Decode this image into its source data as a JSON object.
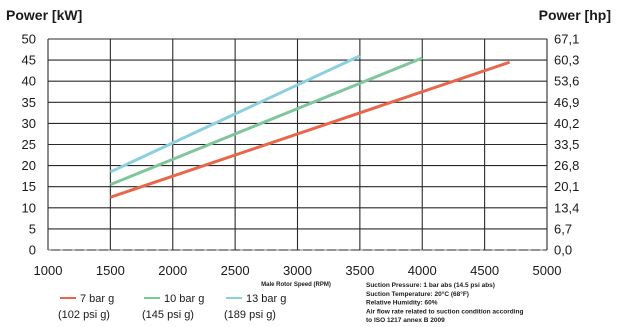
{
  "chart_data": {
    "type": "line",
    "left_axis_title": "Power [kW]",
    "right_axis_title": "Power [hp]",
    "xlabel": "Male Rotor Speed (RPM)",
    "xlim": [
      1000,
      5000
    ],
    "ylim": [
      0,
      50
    ],
    "x_ticks": [
      "1000",
      "1500",
      "2000",
      "2500",
      "3000",
      "3500",
      "4000",
      "4500",
      "5000"
    ],
    "y_ticks": [
      "0",
      "5",
      "10",
      "15",
      "20",
      "25",
      "30",
      "35",
      "40",
      "45",
      "50"
    ],
    "y_right_ticks": [
      "0,0",
      "6,7",
      "13,4",
      "20,1",
      "26,8",
      "33,5",
      "40,2",
      "46,9",
      "53,6",
      "60,3",
      "67,1"
    ],
    "grid": true,
    "legend_position": "bottom-left",
    "series": [
      {
        "name": "7 bar g",
        "sub": "(102 psi g)",
        "color": "#e8664a",
        "x": [
          1500,
          4700
        ],
        "y": [
          12.5,
          44.5
        ]
      },
      {
        "name": "10 bar g",
        "sub": "(145 psi g)",
        "color": "#7fc79a",
        "x": [
          1500,
          4000
        ],
        "y": [
          15.5,
          45.5
        ]
      },
      {
        "name": "13 bar g",
        "sub": "(189 psi g)",
        "color": "#8cd0e0",
        "x": [
          1500,
          3500
        ],
        "y": [
          18.5,
          46
        ]
      }
    ],
    "conditions": [
      "Suction Pressure:   1 bar abs (14.5 psi abs)",
      "Suction Temperature:   20°C (68°F)",
      "Relative Humidity:   60%",
      "Air flow rate related to suction condition according",
      "to ISO 1217 annex B 2009"
    ]
  }
}
